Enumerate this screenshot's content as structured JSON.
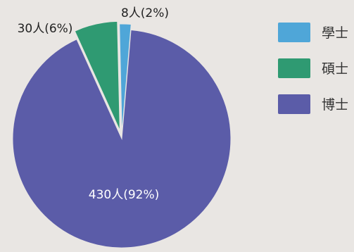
{
  "chart_data": {
    "type": "pie",
    "categories": [
      "學士",
      "碩士",
      "博士"
    ],
    "values": [
      8,
      30,
      430
    ],
    "slice_labels": [
      "8人(2%)",
      "30人(6%)",
      "430人(92%)"
    ],
    "colors": [
      "#4fa6d8",
      "#2f9a72",
      "#5b5ca8"
    ],
    "legend_position": "right"
  }
}
